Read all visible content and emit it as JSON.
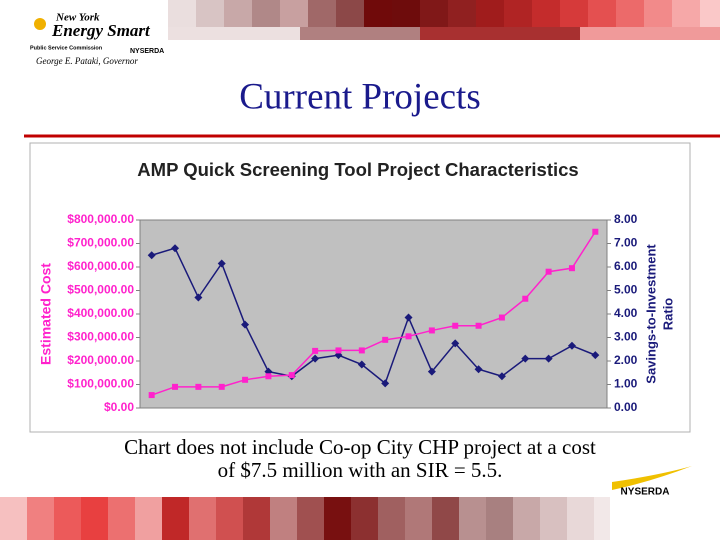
{
  "header": {
    "logo": {
      "line1": "New York",
      "line2": "Energy Smart",
      "agency1": "Public Service Commission",
      "agency2": "NYSERDA",
      "governor": "George E. Pataki, Governor"
    },
    "title": "Current Projects"
  },
  "chart_data": {
    "type": "line",
    "title": "AMP Quick Screening Tool Project Characteristics",
    "y_label": "Estimated Cost",
    "y2_label": [
      "Savings-to-Investment",
      "Ratio"
    ],
    "categories": [
      null,
      null,
      null,
      null,
      null,
      null,
      null,
      null,
      null,
      null,
      null,
      null,
      null,
      null,
      null,
      null,
      null,
      null,
      null,
      null
    ],
    "series": [
      {
        "color": "#1a1a7a",
        "marker": "diamond",
        "values": [
          650000,
          680000,
          470000,
          615000,
          355000,
          155000,
          135000,
          210000,
          225000,
          185000,
          105000,
          385000,
          155000,
          275000,
          165000,
          135000,
          210000,
          210000,
          265000,
          225000
        ]
      },
      {
        "color": "#ff22cc",
        "marker": "square",
        "axis": "y2",
        "values": [
          0.55,
          0.9,
          0.9,
          0.9,
          1.2,
          1.35,
          1.4,
          2.43,
          2.45,
          2.45,
          2.9,
          3.05,
          3.3,
          3.5,
          3.5,
          3.85,
          4.65,
          5.8,
          5.95,
          7.5
        ]
      }
    ],
    "ylim": [
      0,
      800000
    ],
    "yticks": [
      {
        "value": 0,
        "label": "$0.00"
      },
      {
        "value": 100000,
        "label": "$100,000.00"
      },
      {
        "value": 200000,
        "label": "$200,000.00"
      },
      {
        "value": 300000,
        "label": "$300,000.00"
      },
      {
        "value": 400000,
        "label": "$400,000.00"
      },
      {
        "value": 500000,
        "label": "$500,000.00"
      },
      {
        "value": 600000,
        "label": "$600,000.00"
      },
      {
        "value": 700000,
        "label": "$700,000.00"
      },
      {
        "value": 800000,
        "label": "$800,000.00"
      }
    ],
    "y2lim": [
      0,
      8
    ],
    "y2ticks": [
      {
        "value": 0,
        "label": "0.00"
      },
      {
        "value": 1,
        "label": "1.00"
      },
      {
        "value": 2,
        "label": "2.00"
      },
      {
        "value": 3,
        "label": "3.00"
      },
      {
        "value": 4,
        "label": "4.00"
      },
      {
        "value": 5,
        "label": "5.00"
      },
      {
        "value": 6,
        "label": "6.00"
      },
      {
        "value": 7,
        "label": "7.00"
      },
      {
        "value": 8,
        "label": "8.00"
      }
    ],
    "grid": false
  },
  "footnote": [
    "Chart does not include Co-op City CHP project at a cost",
    "of $7.5 million with an SIR = 5.5."
  ],
  "footer": {
    "logo": "NYSERDA"
  }
}
